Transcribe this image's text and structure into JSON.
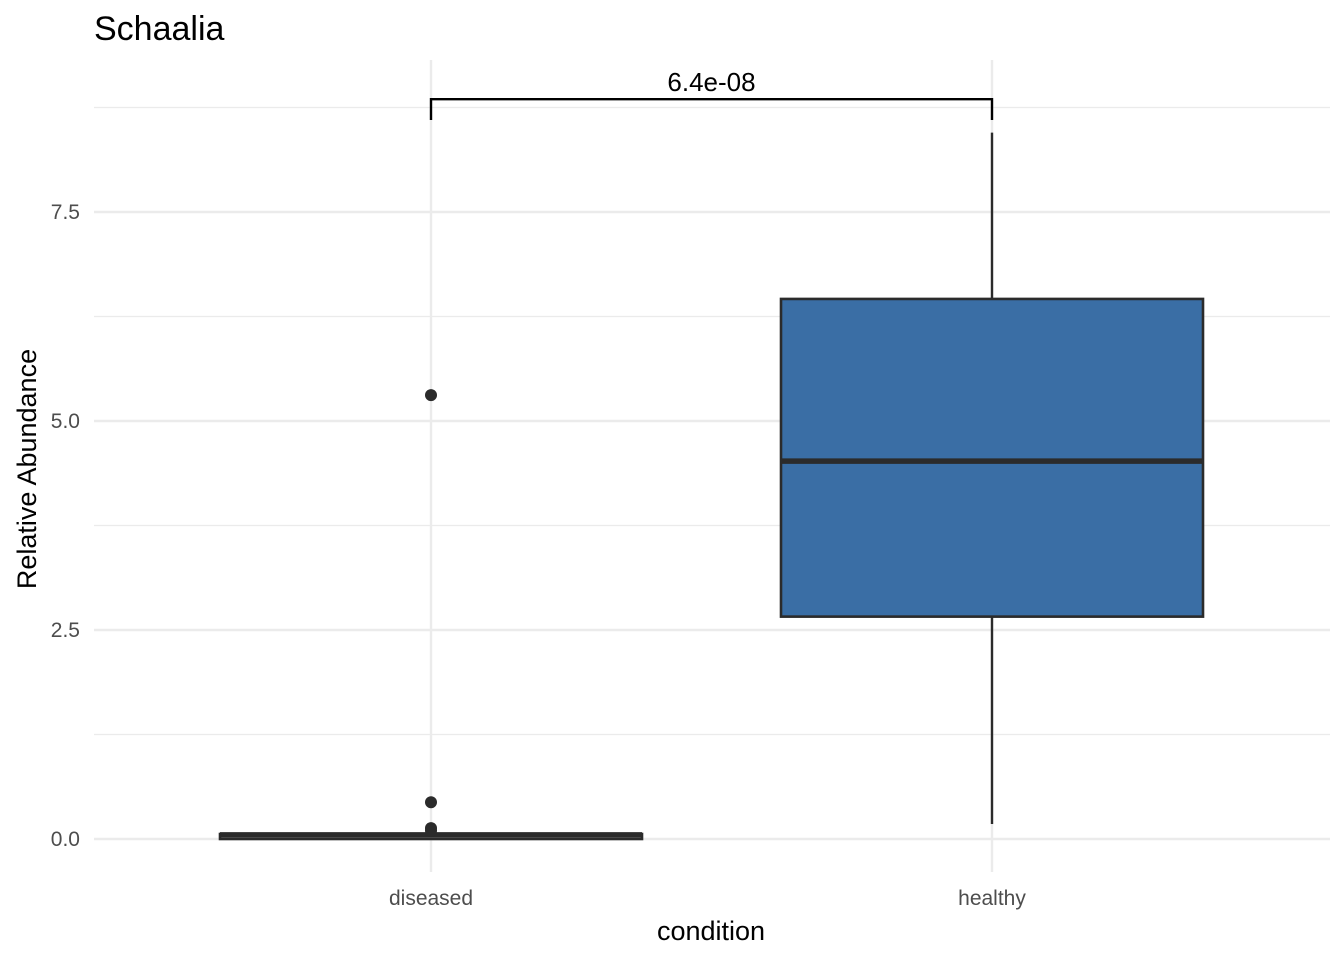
{
  "chart_data": {
    "type": "box",
    "title": "Schaalia",
    "xlabel": "condition",
    "ylabel": "Relative Abundance",
    "categories": [
      "diseased",
      "healthy"
    ],
    "ylim": [
      -0.65,
      9.25
    ],
    "yticks": [
      0.0,
      2.5,
      5.0,
      7.5
    ],
    "ytick_labels": [
      "0.0",
      "2.5",
      "5.0",
      "7.5"
    ],
    "grid": true,
    "fill_color": "#3a6ea5",
    "outline_color": "#2b2b2b",
    "boxes": [
      {
        "category": "diseased",
        "min": 0.0,
        "q1": 0.0,
        "median": 0.05,
        "q3": 0.06,
        "max": 0.06,
        "outliers": [
          5.31,
          0.44,
          0.13,
          0.1
        ],
        "filled": false
      },
      {
        "category": "healthy",
        "min": 0.18,
        "q1": 2.66,
        "median": 4.52,
        "q3": 6.46,
        "max": 8.45,
        "outliers": [],
        "filled": true
      }
    ],
    "comparison": {
      "from": "diseased",
      "to": "healthy",
      "label": "6.4e-08",
      "y": 8.85,
      "tip_y": 8.6
    }
  }
}
